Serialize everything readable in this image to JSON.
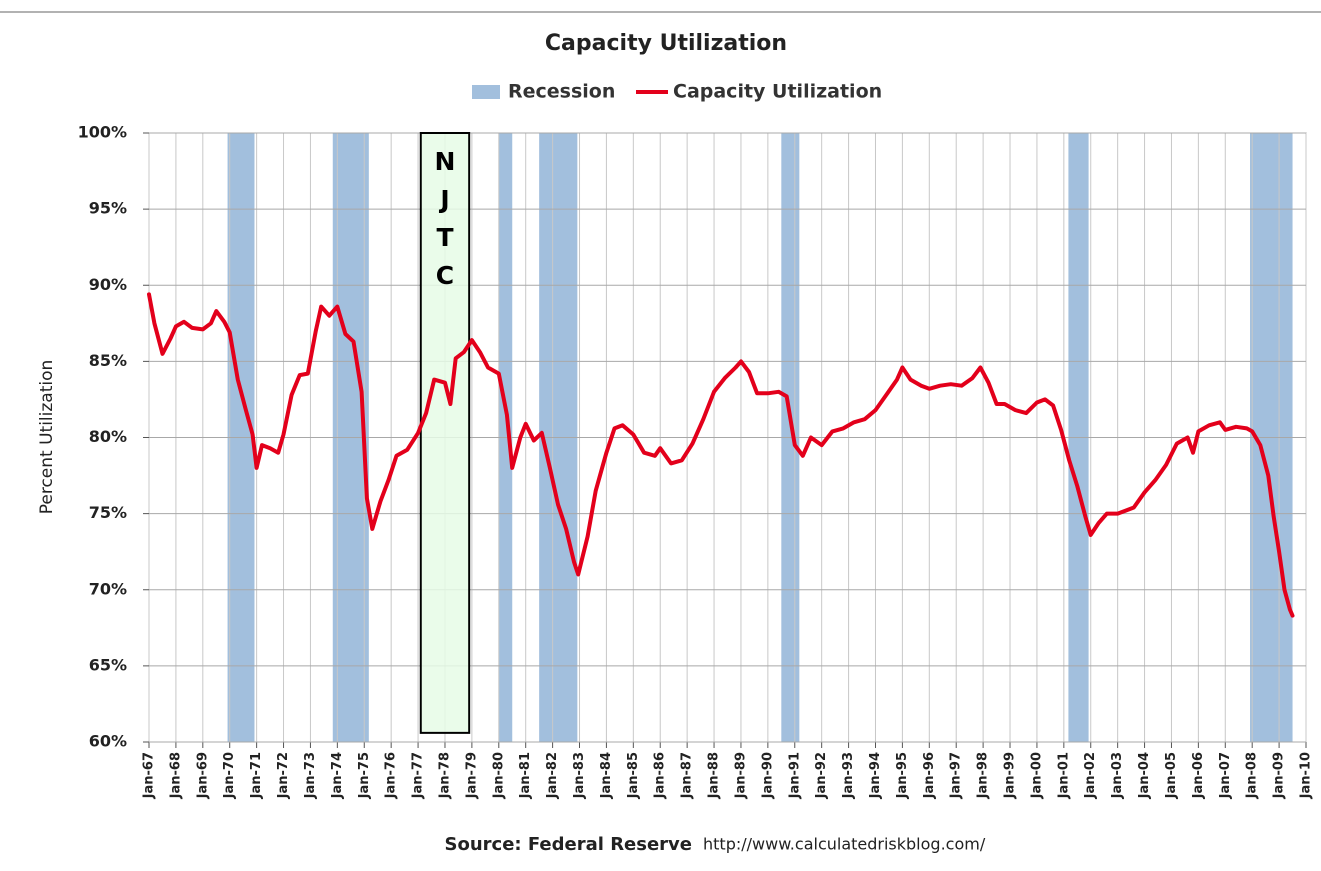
{
  "chart_data": {
    "type": "line",
    "title": "Capacity Utilization",
    "y_label": "Percent Utilization",
    "source": "Source: Federal Reserve",
    "url": "http://www.calculatedriskblog.com/",
    "recessions": {
      "name": "Recession",
      "color": "#a2bfdd",
      "spans": [
        [
          1969.92,
          1970.92
        ],
        [
          1973.83,
          1975.17
        ],
        [
          1980.0,
          1980.5
        ],
        [
          1981.5,
          1982.92
        ],
        [
          1990.5,
          1991.17
        ],
        [
          2001.17,
          2001.92
        ],
        [
          2007.92,
          2009.5
        ]
      ]
    },
    "annotation": {
      "label": [
        "N",
        "J",
        "T",
        "C"
      ],
      "x_range": [
        1977.1,
        1978.9
      ],
      "y_range": [
        60.6,
        100
      ],
      "color": "#e6fbe6"
    },
    "x": [
      1967.0,
      1967.2,
      1967.5,
      1967.8,
      1968.0,
      1968.3,
      1968.6,
      1969.0,
      1969.3,
      1969.5,
      1969.8,
      1970.0,
      1970.3,
      1970.6,
      1970.85,
      1971.0,
      1971.2,
      1971.5,
      1971.8,
      1972.0,
      1972.3,
      1972.6,
      1972.9,
      1973.2,
      1973.4,
      1973.7,
      1974.0,
      1974.3,
      1974.6,
      1974.9,
      1975.1,
      1975.3,
      1975.6,
      1975.9,
      1976.2,
      1976.6,
      1977.0,
      1977.3,
      1977.6,
      1978.0,
      1978.2,
      1978.4,
      1978.7,
      1979.0,
      1979.3,
      1979.6,
      1980.0,
      1980.3,
      1980.5,
      1980.8,
      1981.0,
      1981.3,
      1981.6,
      1981.9,
      1982.2,
      1982.5,
      1982.8,
      1982.95,
      1983.3,
      1983.6,
      1984.0,
      1984.3,
      1984.6,
      1985.0,
      1985.4,
      1985.8,
      1986.0,
      1986.4,
      1986.8,
      1987.2,
      1987.6,
      1988.0,
      1988.4,
      1988.8,
      1989.0,
      1989.3,
      1989.6,
      1990.0,
      1990.4,
      1990.7,
      1991.0,
      1991.3,
      1991.6,
      1992.0,
      1992.4,
      1992.8,
      1993.2,
      1993.6,
      1994.0,
      1994.4,
      1994.8,
      1995.0,
      1995.3,
      1995.7,
      1996.0,
      1996.4,
      1996.8,
      1997.2,
      1997.6,
      1997.9,
      1998.2,
      1998.5,
      1998.8,
      1999.2,
      1999.6,
      2000.0,
      2000.3,
      2000.6,
      2000.9,
      2001.2,
      2001.5,
      2001.8,
      2002.0,
      2002.3,
      2002.6,
      2003.0,
      2003.3,
      2003.6,
      2004.0,
      2004.4,
      2004.8,
      2005.2,
      2005.6,
      2005.8,
      2006.0,
      2006.4,
      2006.8,
      2007.0,
      2007.4,
      2007.8,
      2008.0,
      2008.3,
      2008.6,
      2008.8,
      2009.0,
      2009.2,
      2009.4,
      2009.5
    ],
    "series": [
      {
        "name": "Capacity Utilization",
        "color": "#e3001b",
        "values": [
          89.4,
          87.5,
          85.5,
          86.5,
          87.3,
          87.6,
          87.2,
          87.1,
          87.5,
          88.3,
          87.6,
          86.9,
          83.8,
          81.8,
          80.2,
          78.0,
          79.5,
          79.3,
          79.0,
          80.2,
          82.8,
          84.1,
          84.2,
          87.0,
          88.6,
          88.0,
          88.6,
          86.8,
          86.3,
          83.0,
          76.0,
          74.0,
          75.8,
          77.2,
          78.8,
          79.2,
          80.3,
          81.6,
          83.8,
          83.6,
          82.2,
          85.2,
          85.6,
          86.4,
          85.6,
          84.6,
          84.2,
          81.5,
          78.0,
          80.0,
          80.9,
          79.8,
          80.3,
          78.0,
          75.6,
          74.0,
          71.8,
          71.0,
          73.5,
          76.5,
          79.0,
          80.6,
          80.8,
          80.2,
          79.0,
          78.8,
          79.3,
          78.3,
          78.5,
          79.6,
          81.2,
          83.0,
          83.9,
          84.6,
          85.0,
          84.3,
          82.9,
          82.9,
          83.0,
          82.7,
          79.5,
          78.8,
          80.0,
          79.5,
          80.4,
          80.6,
          81.0,
          81.2,
          81.8,
          82.8,
          83.8,
          84.6,
          83.8,
          83.4,
          83.2,
          83.4,
          83.5,
          83.4,
          83.9,
          84.6,
          83.6,
          82.2,
          82.2,
          81.8,
          81.6,
          82.3,
          82.5,
          82.1,
          80.5,
          78.5,
          76.8,
          74.8,
          73.6,
          74.4,
          75.0,
          75.0,
          75.2,
          75.4,
          76.4,
          77.2,
          78.2,
          79.6,
          80.0,
          79.0,
          80.4,
          80.8,
          81.0,
          80.5,
          80.7,
          80.6,
          80.4,
          79.5,
          77.5,
          74.8,
          72.5,
          70.0,
          68.7,
          68.3
        ]
      }
    ],
    "xlim": [
      1967,
      2010
    ],
    "xticks": [
      {
        "value": 1967,
        "label": "Jan-67"
      },
      {
        "value": 1968,
        "label": "Jan-68"
      },
      {
        "value": 1969,
        "label": "Jan-69"
      },
      {
        "value": 1970,
        "label": "Jan-70"
      },
      {
        "value": 1971,
        "label": "Jan-71"
      },
      {
        "value": 1972,
        "label": "Jan-72"
      },
      {
        "value": 1973,
        "label": "Jan-73"
      },
      {
        "value": 1974,
        "label": "Jan-74"
      },
      {
        "value": 1975,
        "label": "Jan-75"
      },
      {
        "value": 1976,
        "label": "Jan-76"
      },
      {
        "value": 1977,
        "label": "Jan-77"
      },
      {
        "value": 1978,
        "label": "Jan-78"
      },
      {
        "value": 1979,
        "label": "Jan-79"
      },
      {
        "value": 1980,
        "label": "Jan-80"
      },
      {
        "value": 1981,
        "label": "Jan-81"
      },
      {
        "value": 1982,
        "label": "Jan-82"
      },
      {
        "value": 1983,
        "label": "Jan-83"
      },
      {
        "value": 1984,
        "label": "Jan-84"
      },
      {
        "value": 1985,
        "label": "Jan-85"
      },
      {
        "value": 1986,
        "label": "Jan-86"
      },
      {
        "value": 1987,
        "label": "Jan-87"
      },
      {
        "value": 1988,
        "label": "Jan-88"
      },
      {
        "value": 1989,
        "label": "Jan-89"
      },
      {
        "value": 1990,
        "label": "Jan-90"
      },
      {
        "value": 1991,
        "label": "Jan-91"
      },
      {
        "value": 1992,
        "label": "Jan-92"
      },
      {
        "value": 1993,
        "label": "Jan-93"
      },
      {
        "value": 1994,
        "label": "Jan-94"
      },
      {
        "value": 1995,
        "label": "Jan-95"
      },
      {
        "value": 1996,
        "label": "Jan-96"
      },
      {
        "value": 1997,
        "label": "Jan-97"
      },
      {
        "value": 1998,
        "label": "Jan-98"
      },
      {
        "value": 1999,
        "label": "Jan-99"
      },
      {
        "value": 2000,
        "label": "Jan-00"
      },
      {
        "value": 2001,
        "label": "Jan-01"
      },
      {
        "value": 2002,
        "label": "Jan-02"
      },
      {
        "value": 2003,
        "label": "Jan-03"
      },
      {
        "value": 2004,
        "label": "Jan-04"
      },
      {
        "value": 2005,
        "label": "Jan-05"
      },
      {
        "value": 2006,
        "label": "Jan-06"
      },
      {
        "value": 2007,
        "label": "Jan-07"
      },
      {
        "value": 2008,
        "label": "Jan-08"
      },
      {
        "value": 2009,
        "label": "Jan-09"
      },
      {
        "value": 2010,
        "label": "Jan-10"
      }
    ],
    "ylim": [
      60,
      100
    ],
    "yticks": [
      {
        "value": 60,
        "label": "60%"
      },
      {
        "value": 65,
        "label": "65%"
      },
      {
        "value": 70,
        "label": "70%"
      },
      {
        "value": 75,
        "label": "75%"
      },
      {
        "value": 80,
        "label": "80%"
      },
      {
        "value": 85,
        "label": "85%"
      },
      {
        "value": 90,
        "label": "90%"
      },
      {
        "value": 95,
        "label": "95%"
      },
      {
        "value": 100,
        "label": "100%"
      }
    ],
    "grid": true
  }
}
